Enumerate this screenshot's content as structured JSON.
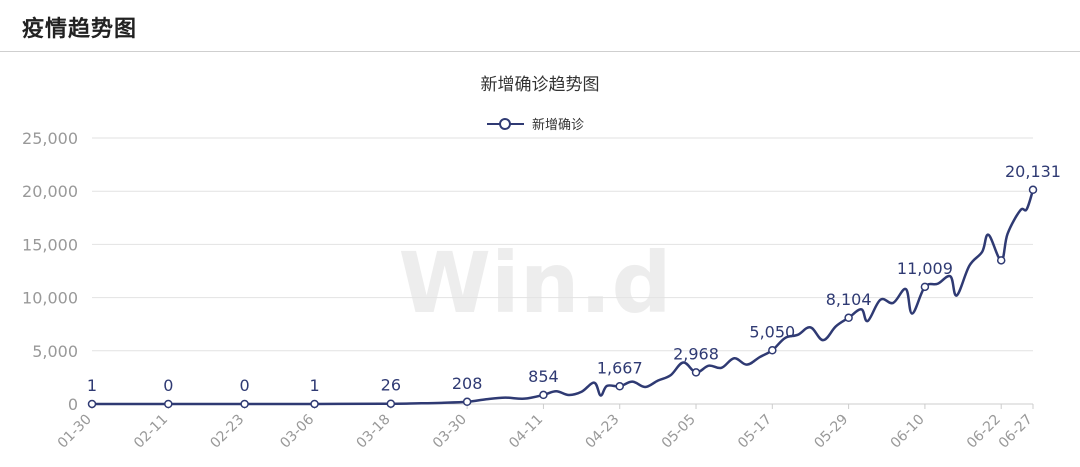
{
  "header": {
    "title": "疫情趋势图"
  },
  "chart_data": {
    "type": "line",
    "title": "新增确诊趋势图",
    "legend": {
      "position": "top-center",
      "entries": [
        "新增确诊"
      ]
    },
    "watermark": "Win.d",
    "xlabel": "",
    "ylabel": "",
    "ylim": [
      0,
      25000
    ],
    "yticks": [
      0,
      5000,
      10000,
      15000,
      20000,
      25000
    ],
    "ytick_labels": [
      "0",
      "5,000",
      "10,000",
      "15,000",
      "20,000",
      "25,000"
    ],
    "x_tick_labels": [
      "01-30",
      "02-11",
      "02-23",
      "03-06",
      "03-18",
      "03-30",
      "04-11",
      "04-23",
      "05-05",
      "05-17",
      "05-29",
      "06-10",
      "06-22",
      "06-27"
    ],
    "grid": true,
    "colors": {
      "line": "#2f3a73",
      "grid": "#e2e2e2",
      "axis": "#cccccc",
      "tick_text": "#999999",
      "label_text": "#2f3a73"
    },
    "series": [
      {
        "name": "新增确诊",
        "points": [
          {
            "d": "01-30",
            "v": 1
          },
          {
            "d": "02-11",
            "v": 0
          },
          {
            "d": "02-23",
            "v": 0
          },
          {
            "d": "03-06",
            "v": 1
          },
          {
            "d": "03-18",
            "v": 26
          },
          {
            "d": "03-22",
            "v": 60
          },
          {
            "d": "03-26",
            "v": 110
          },
          {
            "d": "03-30",
            "v": 208
          },
          {
            "d": "04-02",
            "v": 450
          },
          {
            "d": "04-05",
            "v": 600
          },
          {
            "d": "04-08",
            "v": 500
          },
          {
            "d": "04-11",
            "v": 854
          },
          {
            "d": "04-13",
            "v": 1200
          },
          {
            "d": "04-15",
            "v": 850
          },
          {
            "d": "04-17",
            "v": 1150
          },
          {
            "d": "04-19",
            "v": 2000
          },
          {
            "d": "04-20",
            "v": 800
          },
          {
            "d": "04-21",
            "v": 1700
          },
          {
            "d": "04-23",
            "v": 1667
          },
          {
            "d": "04-25",
            "v": 2100
          },
          {
            "d": "04-27",
            "v": 1600
          },
          {
            "d": "04-29",
            "v": 2200
          },
          {
            "d": "05-01",
            "v": 2700
          },
          {
            "d": "05-03",
            "v": 3900
          },
          {
            "d": "05-05",
            "v": 2968
          },
          {
            "d": "05-07",
            "v": 3600
          },
          {
            "d": "05-09",
            "v": 3400
          },
          {
            "d": "05-11",
            "v": 4300
          },
          {
            "d": "05-13",
            "v": 3700
          },
          {
            "d": "05-15",
            "v": 4400
          },
          {
            "d": "05-17",
            "v": 5050
          },
          {
            "d": "05-19",
            "v": 6200
          },
          {
            "d": "05-21",
            "v": 6500
          },
          {
            "d": "05-23",
            "v": 7200
          },
          {
            "d": "05-25",
            "v": 6000
          },
          {
            "d": "05-27",
            "v": 7300
          },
          {
            "d": "05-29",
            "v": 8104
          },
          {
            "d": "05-31",
            "v": 8900
          },
          {
            "d": "06-01",
            "v": 7800
          },
          {
            "d": "06-03",
            "v": 9800
          },
          {
            "d": "06-05",
            "v": 9500
          },
          {
            "d": "06-07",
            "v": 10800
          },
          {
            "d": "06-08",
            "v": 8500
          },
          {
            "d": "06-10",
            "v": 11009
          },
          {
            "d": "06-12",
            "v": 11300
          },
          {
            "d": "06-14",
            "v": 12000
          },
          {
            "d": "06-15",
            "v": 10200
          },
          {
            "d": "06-17",
            "v": 13000
          },
          {
            "d": "06-19",
            "v": 14300
          },
          {
            "d": "06-20",
            "v": 15900
          },
          {
            "d": "06-22",
            "v": 13500
          },
          {
            "d": "06-23",
            "v": 16000
          },
          {
            "d": "06-25",
            "v": 18200
          },
          {
            "d": "06-26",
            "v": 18300
          },
          {
            "d": "06-27",
            "v": 20131
          }
        ],
        "labeled_points": [
          {
            "d": "01-30",
            "v": 1,
            "label": "1"
          },
          {
            "d": "02-11",
            "v": 0,
            "label": "0"
          },
          {
            "d": "02-23",
            "v": 0,
            "label": "0"
          },
          {
            "d": "03-06",
            "v": 1,
            "label": "1"
          },
          {
            "d": "03-18",
            "v": 26,
            "label": "26"
          },
          {
            "d": "03-30",
            "v": 208,
            "label": "208"
          },
          {
            "d": "04-11",
            "v": 854,
            "label": "854"
          },
          {
            "d": "04-23",
            "v": 1667,
            "label": "1,667"
          },
          {
            "d": "05-05",
            "v": 2968,
            "label": "2,968"
          },
          {
            "d": "05-17",
            "v": 5050,
            "label": "5,050"
          },
          {
            "d": "05-29",
            "v": 8104,
            "label": "8,104"
          },
          {
            "d": "06-10",
            "v": 11009,
            "label": "11,009"
          },
          {
            "d": "06-22",
            "v": 13500,
            "label": ""
          },
          {
            "d": "06-27",
            "v": 20131,
            "label": "20,131"
          }
        ]
      }
    ]
  }
}
